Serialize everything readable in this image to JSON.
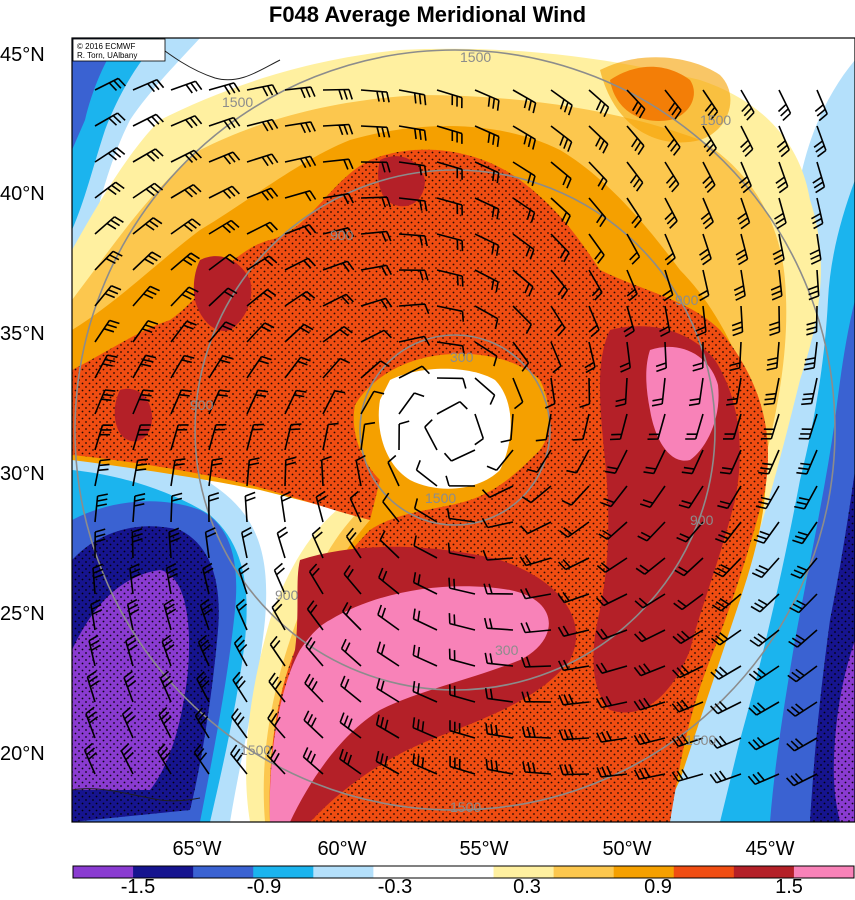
{
  "title": "F048 Average Meridional Wind",
  "credit": {
    "line1": "© 2016 ECMWF",
    "line2": "R. Torn, UAlbany"
  },
  "lat_labels": [
    "45°N",
    "40°N",
    "35°N",
    "30°N",
    "25°N",
    "20°N"
  ],
  "lon_labels": [
    "65°W",
    "60°W",
    "55°W",
    "50°W",
    "45°W"
  ],
  "ring_labels": [
    "1500",
    "1500",
    "1500",
    "900",
    "900",
    "900",
    "900",
    "900",
    "300",
    "300",
    "1500",
    "1500",
    "1500"
  ],
  "colorbar": {
    "tick_labels": [
      "-1.5",
      "-0.9",
      "-0.3",
      "0.3",
      "0.9",
      "1.5"
    ],
    "colors": [
      "#8a3bd1",
      "#16148f",
      "#3a62d2",
      "#1bb4ee",
      "#b4e0fb",
      "#ffffff",
      "#ffffff",
      "#fff0a0",
      "#fcc74e",
      "#f5a000",
      "#f04d12",
      "#b42028",
      "#f882b8"
    ]
  },
  "colors": {
    "ring": "#8c8c8c",
    "coast": "#202020",
    "barb": "#000000"
  }
}
